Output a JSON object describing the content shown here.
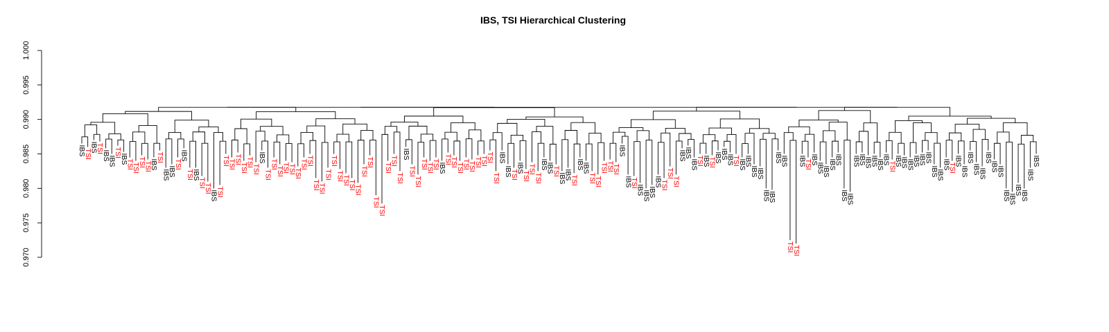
{
  "chart_data": {
    "type": "dendrogram",
    "title": "IBS, TSI Hierarchical Clustering",
    "xlabel": "",
    "ylabel": "",
    "ylim": [
      0.97,
      1.0
    ],
    "yticks": [
      "0.970",
      "0.975",
      "0.980",
      "0.985",
      "0.990",
      "0.995",
      "1.000"
    ],
    "grid": false,
    "groups": [
      {
        "name": "IBS",
        "color": "#000000"
      },
      {
        "name": "TSI",
        "color": "#ff0000"
      }
    ],
    "tree_top_height": 0.9918,
    "leaves": [
      {
        "label": "IBS",
        "h": 0.9865
      },
      {
        "label": "TSI",
        "h": 0.986
      },
      {
        "label": "IBS",
        "h": 0.987
      },
      {
        "label": "TSI",
        "h": 0.9868
      },
      {
        "label": "IBS",
        "h": 0.9858
      },
      {
        "label": "IBS",
        "h": 0.985
      },
      {
        "label": "TSI",
        "h": 0.9862
      },
      {
        "label": "IBS",
        "h": 0.9853
      },
      {
        "label": "TSI",
        "h": 0.9845
      },
      {
        "label": "TSI",
        "h": 0.984
      },
      {
        "label": "TSI",
        "h": 0.9848
      },
      {
        "label": "TSI",
        "h": 0.9842
      },
      {
        "label": "IBS",
        "h": 0.9845
      },
      {
        "label": "TSI",
        "h": 0.9855
      },
      {
        "label": "IBS",
        "h": 0.983
      },
      {
        "label": "IBS",
        "h": 0.9835
      },
      {
        "label": "TSI",
        "h": 0.9845
      },
      {
        "label": "IBS",
        "h": 0.9858
      },
      {
        "label": "TSI",
        "h": 0.983
      },
      {
        "label": "IBS",
        "h": 0.983
      },
      {
        "label": "TSI",
        "h": 0.9818
      },
      {
        "label": "TSI",
        "h": 0.981
      },
      {
        "label": "IBS",
        "h": 0.98
      },
      {
        "label": "TSI",
        "h": 0.9805
      },
      {
        "label": "TSI",
        "h": 0.985
      },
      {
        "label": "TSI",
        "h": 0.9845
      },
      {
        "label": "TSI",
        "h": 0.9852
      },
      {
        "label": "TSI",
        "h": 0.984
      },
      {
        "label": "TSI",
        "h": 0.9848
      },
      {
        "label": "TSI",
        "h": 0.9838
      },
      {
        "label": "IBS",
        "h": 0.9855
      },
      {
        "label": "TSI",
        "h": 0.983
      },
      {
        "label": "TSI",
        "h": 0.9845
      },
      {
        "label": "TSI",
        "h": 0.9835
      },
      {
        "label": "TSI",
        "h": 0.984
      },
      {
        "label": "TSI",
        "h": 0.9838
      },
      {
        "label": "TSI",
        "h": 0.9832
      },
      {
        "label": "TSI",
        "h": 0.9845
      },
      {
        "label": "TSI",
        "h": 0.985
      },
      {
        "label": "TSI",
        "h": 0.9815
      },
      {
        "label": "TSI",
        "h": 0.981
      },
      {
        "label": "TSI",
        "h": 0.983
      },
      {
        "label": "TSI",
        "h": 0.985
      },
      {
        "label": "TSI",
        "h": 0.9828
      },
      {
        "label": "TSI",
        "h": 0.9822
      },
      {
        "label": "TSI",
        "h": 0.9815
      },
      {
        "label": "TSI",
        "h": 0.9808
      },
      {
        "label": "TSI",
        "h": 0.9835
      },
      {
        "label": "TSI",
        "h": 0.9848
      },
      {
        "label": "TSI",
        "h": 0.979
      },
      {
        "label": "TSI",
        "h": 0.9778
      },
      {
        "label": "TSI",
        "h": 0.984
      },
      {
        "label": "TSI",
        "h": 0.985
      },
      {
        "label": "TSI",
        "h": 0.9825
      },
      {
        "label": "IBS",
        "h": 0.986
      },
      {
        "label": "TSI",
        "h": 0.9835
      },
      {
        "label": "TSI",
        "h": 0.982
      },
      {
        "label": "TSI",
        "h": 0.9845
      },
      {
        "label": "TSI",
        "h": 0.984
      },
      {
        "label": "TSI",
        "h": 0.9845
      },
      {
        "label": "IBS",
        "h": 0.984
      },
      {
        "label": "TSI",
        "h": 0.9852
      },
      {
        "label": "TSI",
        "h": 0.9848
      },
      {
        "label": "TSI",
        "h": 0.984
      },
      {
        "label": "TSI",
        "h": 0.9845
      },
      {
        "label": "TSI",
        "h": 0.9842
      },
      {
        "label": "TSI",
        "h": 0.9848
      },
      {
        "label": "TSI",
        "h": 0.985
      },
      {
        "label": "TSI",
        "h": 0.9855
      },
      {
        "label": "TSI",
        "h": 0.9825
      },
      {
        "label": "IBS",
        "h": 0.9855
      },
      {
        "label": "IBS",
        "h": 0.9835
      },
      {
        "label": "TSI",
        "h": 0.983
      },
      {
        "label": "IBS",
        "h": 0.984
      },
      {
        "label": "TSI",
        "h": 0.9828
      },
      {
        "label": "TSI",
        "h": 0.9838
      },
      {
        "label": "TSI",
        "h": 0.9825
      },
      {
        "label": "IBS",
        "h": 0.9845
      },
      {
        "label": "IBS",
        "h": 0.984
      },
      {
        "label": "TSI",
        "h": 0.9835
      },
      {
        "label": "IBS",
        "h": 0.9825
      },
      {
        "label": "IBS",
        "h": 0.983
      },
      {
        "label": "TSI",
        "h": 0.9822
      },
      {
        "label": "IBS",
        "h": 0.9845
      },
      {
        "label": "IBS",
        "h": 0.984
      },
      {
        "label": "TSI",
        "h": 0.9825
      },
      {
        "label": "TSI",
        "h": 0.982
      },
      {
        "label": "TSI",
        "h": 0.984
      },
      {
        "label": "TSI",
        "h": 0.9842
      },
      {
        "label": "TSI",
        "h": 0.9838
      },
      {
        "label": "IBS",
        "h": 0.9865
      },
      {
        "label": "IBS",
        "h": 0.982
      },
      {
        "label": "TSI",
        "h": 0.9818
      },
      {
        "label": "IBS",
        "h": 0.9808
      },
      {
        "label": "IBS",
        "h": 0.98
      },
      {
        "label": "IBS",
        "h": 0.9805
      },
      {
        "label": "IBS",
        "h": 0.982
      },
      {
        "label": "TSI",
        "h": 0.9815
      },
      {
        "label": "TSI",
        "h": 0.9832
      },
      {
        "label": "TSI",
        "h": 0.982
      },
      {
        "label": "IBS",
        "h": 0.9858
      },
      {
        "label": "IBS",
        "h": 0.9862
      },
      {
        "label": "IBS",
        "h": 0.9845
      },
      {
        "label": "TSI",
        "h": 0.985
      },
      {
        "label": "IBS",
        "h": 0.985
      },
      {
        "label": "TSI",
        "h": 0.9848
      },
      {
        "label": "IBS",
        "h": 0.9855
      },
      {
        "label": "IBS",
        "h": 0.986
      },
      {
        "label": "IBS",
        "h": 0.9852
      },
      {
        "label": "TSI",
        "h": 0.985
      },
      {
        "label": "IBS",
        "h": 0.9845
      },
      {
        "label": "IBS",
        "h": 0.985
      },
      {
        "label": "IBS",
        "h": 0.9835
      },
      {
        "label": "IBS",
        "h": 0.9832
      },
      {
        "label": "IBS",
        "h": 0.98
      },
      {
        "label": "IBS",
        "h": 0.9798
      },
      {
        "label": "IBS",
        "h": 0.9855
      },
      {
        "label": "IBS",
        "h": 0.985
      },
      {
        "label": "TSI",
        "h": 0.9725
      },
      {
        "label": "TSI",
        "h": 0.972
      },
      {
        "label": "IBS",
        "h": 0.985
      },
      {
        "label": "TSI",
        "h": 0.9845
      },
      {
        "label": "IBS",
        "h": 0.9852
      },
      {
        "label": "IBS",
        "h": 0.984
      },
      {
        "label": "IBS",
        "h": 0.9835
      },
      {
        "label": "IBS",
        "h": 0.9845
      },
      {
        "label": "IBS",
        "h": 0.9852
      },
      {
        "label": "IBS",
        "h": 0.98
      },
      {
        "label": "IBS",
        "h": 0.9795
      },
      {
        "label": "IBS",
        "h": 0.985
      },
      {
        "label": "IBS",
        "h": 0.9852
      },
      {
        "label": "IBS",
        "h": 0.9848
      },
      {
        "label": "IBS",
        "h": 0.985
      },
      {
        "label": "IBS",
        "h": 0.9845
      },
      {
        "label": "IBS",
        "h": 0.9852
      },
      {
        "label": "TSI",
        "h": 0.9842
      },
      {
        "label": "IBS",
        "h": 0.985
      },
      {
        "label": "IBS",
        "h": 0.9848
      },
      {
        "label": "IBS",
        "h": 0.9845
      },
      {
        "label": "IBS",
        "h": 0.985
      },
      {
        "label": "IBS",
        "h": 0.9852
      },
      {
        "label": "IBS",
        "h": 0.9855
      },
      {
        "label": "IBS",
        "h": 0.9835
      },
      {
        "label": "IBS",
        "h": 0.983
      },
      {
        "label": "IBS",
        "h": 0.9845
      },
      {
        "label": "TSI",
        "h": 0.984
      },
      {
        "label": "IBS",
        "h": 0.985
      },
      {
        "label": "IBS",
        "h": 0.9835
      },
      {
        "label": "IBS",
        "h": 0.9855
      },
      {
        "label": "IBS",
        "h": 0.9838
      },
      {
        "label": "IBS",
        "h": 0.9832
      },
      {
        "label": "IBS",
        "h": 0.9855
      },
      {
        "label": "IBS",
        "h": 0.9842
      },
      {
        "label": "IBS",
        "h": 0.9835
      },
      {
        "label": "IBS",
        "h": 0.98
      },
      {
        "label": "IBS",
        "h": 0.9795
      },
      {
        "label": "IBS",
        "h": 0.9808
      },
      {
        "label": "IBS",
        "h": 0.98
      },
      {
        "label": "IBS",
        "h": 0.983
      },
      {
        "label": "IBS",
        "h": 0.985
      }
    ]
  }
}
